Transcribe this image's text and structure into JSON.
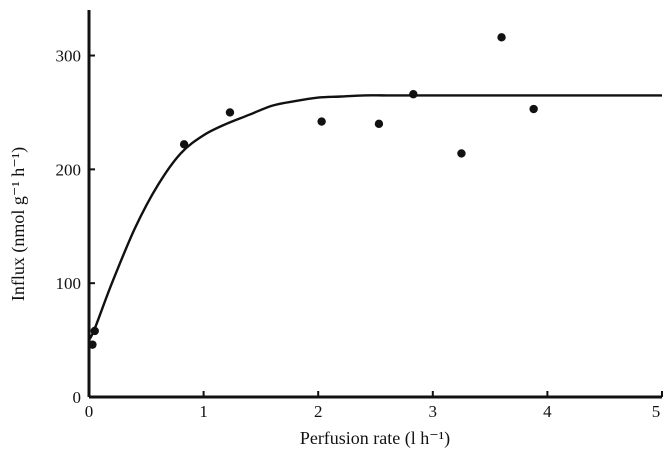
{
  "chart_data": {
    "type": "scatter",
    "title": "",
    "xlabel": "Perfusion rate (l h⁻¹)",
    "ylabel": "Influx (nmol g⁻¹ h⁻¹)",
    "xlim": [
      0,
      5
    ],
    "ylim": [
      0,
      340
    ],
    "x_ticks": [
      0,
      1,
      2,
      3,
      4,
      5
    ],
    "x_tick_labels": [
      "0",
      "1",
      "2",
      "3",
      "4",
      "5"
    ],
    "y_ticks": [
      0,
      100,
      200,
      300
    ],
    "y_tick_labels": [
      "0",
      "100",
      "200",
      "300"
    ],
    "grid": false,
    "colors": {
      "ink": "#111111",
      "background": "#ffffff"
    },
    "points": [
      {
        "x": 0.03,
        "y": 46
      },
      {
        "x": 0.05,
        "y": 58
      },
      {
        "x": 0.83,
        "y": 222
      },
      {
        "x": 1.23,
        "y": 250
      },
      {
        "x": 2.03,
        "y": 242
      },
      {
        "x": 2.53,
        "y": 240
      },
      {
        "x": 2.83,
        "y": 266
      },
      {
        "x": 3.25,
        "y": 214
      },
      {
        "x": 3.6,
        "y": 316
      },
      {
        "x": 3.88,
        "y": 253
      }
    ],
    "fit_curve": {
      "x": [
        0,
        0.05,
        0.2,
        0.4,
        0.6,
        0.8,
        1.0,
        1.2,
        1.4,
        1.6,
        1.8,
        2.0,
        2.2,
        2.4,
        2.6,
        3.0,
        3.5,
        4.0,
        4.5,
        5.0
      ],
      "y": [
        50,
        60,
        100,
        148,
        186,
        214,
        230,
        240,
        248,
        256,
        260,
        263,
        264,
        265,
        265,
        265,
        265,
        265,
        265,
        265
      ]
    }
  }
}
